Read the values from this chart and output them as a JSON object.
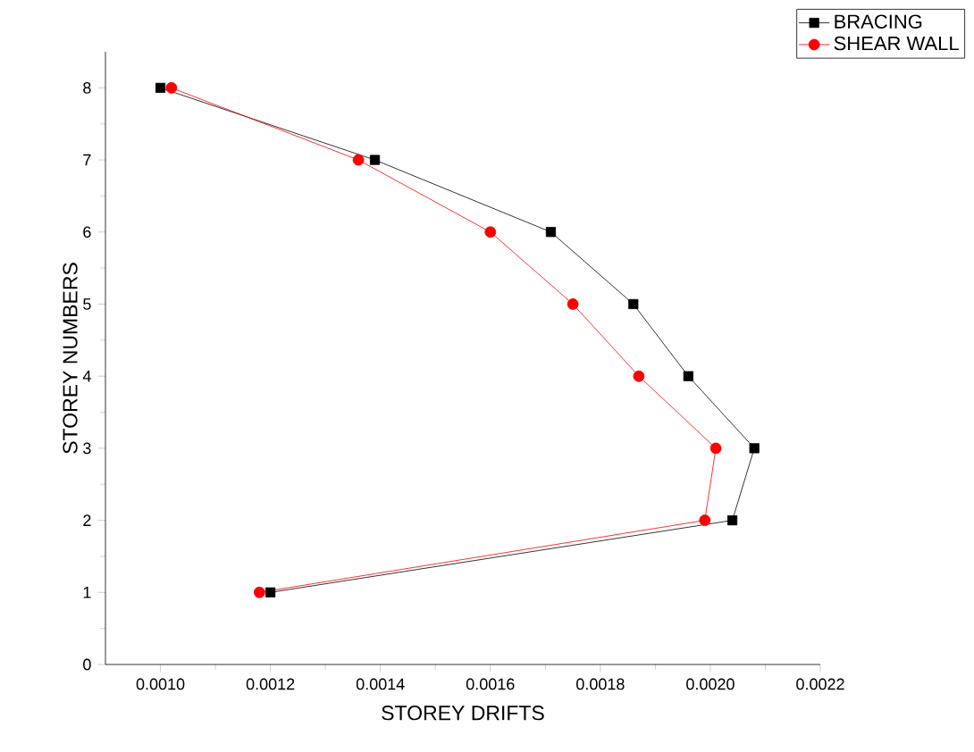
{
  "chart_data": {
    "type": "line",
    "xlabel": "STOREY DRIFTS",
    "ylabel": "STOREY NUMBERS",
    "xlim": [
      0.0009,
      0.0022
    ],
    "xticks": [
      {
        "value": 0.001,
        "label": "0.0010"
      },
      {
        "value": 0.0012,
        "label": "0.0012"
      },
      {
        "value": 0.0014,
        "label": "0.0014"
      },
      {
        "value": 0.0016,
        "label": "0.0016"
      },
      {
        "value": 0.0018,
        "label": "0.0018"
      },
      {
        "value": 0.002,
        "label": "0.0020"
      },
      {
        "value": 0.0022,
        "label": "0.0022"
      }
    ],
    "ylim": [
      0,
      8.5
    ],
    "yticks": [
      0,
      1,
      2,
      3,
      4,
      5,
      6,
      7,
      8
    ],
    "legend": "top right",
    "grid": false,
    "series": [
      {
        "name": "BRACING",
        "color": "#000000",
        "marker": "square",
        "x": [
          0.0012,
          0.00204,
          0.00208,
          0.00196,
          0.00186,
          0.00171,
          0.00139,
          0.001
        ],
        "values": [
          1,
          2,
          3,
          4,
          5,
          6,
          7,
          8
        ]
      },
      {
        "name": "SHEAR WALL",
        "color": "#ff0000",
        "marker": "circle",
        "x": [
          0.00118,
          0.00199,
          0.00201,
          0.00187,
          0.00175,
          0.0016,
          0.00136,
          0.00102
        ],
        "values": [
          1,
          2,
          3,
          4,
          5,
          6,
          7,
          8
        ]
      }
    ]
  }
}
